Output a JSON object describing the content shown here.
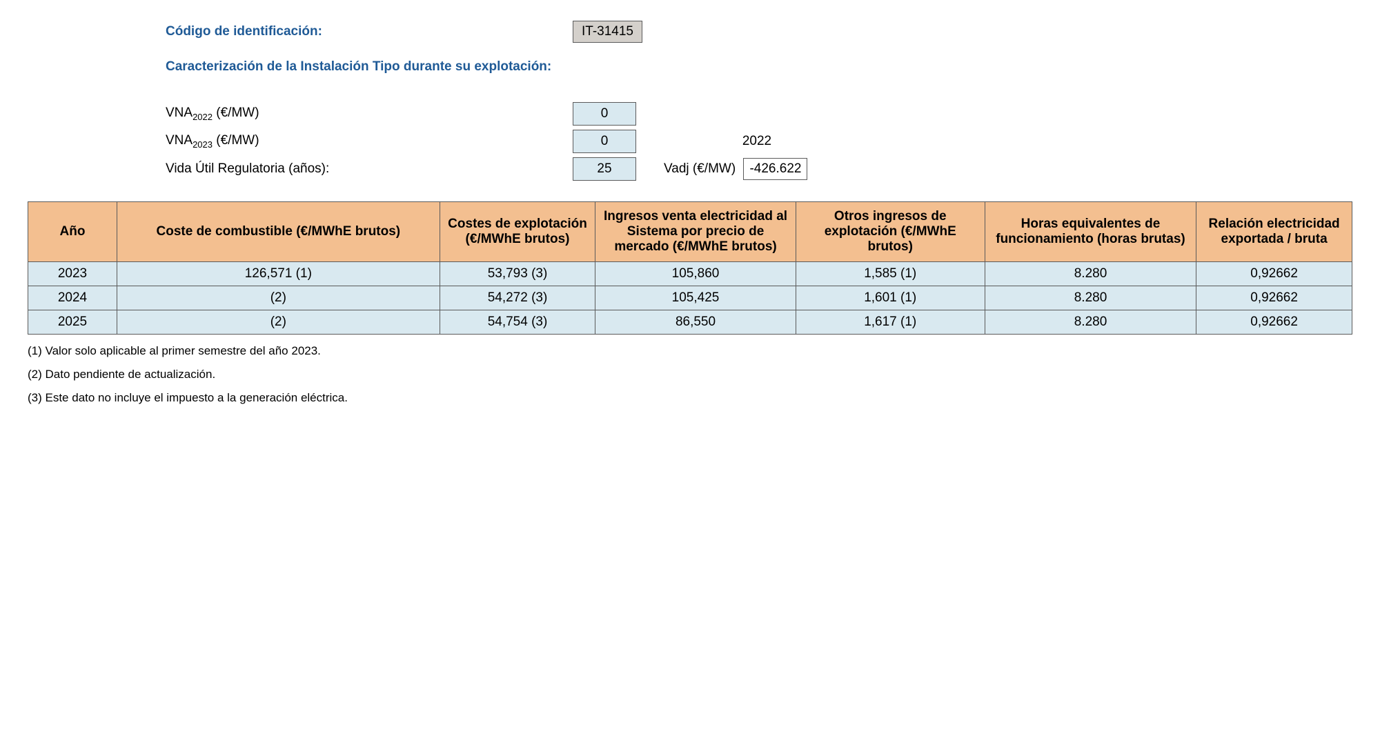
{
  "header": {
    "code_label": "Código de identificación:",
    "code_value": "IT-31415",
    "section_title": "Caracterización de la Instalación Tipo durante su explotación:"
  },
  "params": {
    "vna2022_label": "VNA",
    "vna2022_sub": "2022",
    "vna2022_unit": " (€/MW)",
    "vna2022_value": "0",
    "vna2023_label": "VNA",
    "vna2023_sub": "2023",
    "vna2023_unit": " (€/MW)",
    "vna2023_value": "0",
    "year_side": "2022",
    "life_label": "Vida Útil Regulatoria (años):",
    "life_value": "25",
    "vadj_label": "Vadj (€/MW)",
    "vadj_value": "-426.622"
  },
  "table": {
    "headers": {
      "year": "Año",
      "fuel": "Coste de combustible (€/MWhE brutos)",
      "exploit": "Costes de explotación (€/MWhE brutos)",
      "income": "Ingresos venta electricidad al Sistema por precio de mercado (€/MWhE brutos)",
      "other": "Otros ingresos de explotación (€/MWhE brutos)",
      "hours": "Horas equivalentes de funcionamiento (horas brutas)",
      "ratio": "Relación electricidad exportada / bruta"
    },
    "rows": [
      {
        "year": "2023",
        "fuel": "126,571 (1)",
        "exploit": "53,793 (3)",
        "income": "105,860",
        "other": "1,585 (1)",
        "hours": "8.280",
        "ratio": "0,92662"
      },
      {
        "year": "2024",
        "fuel": "(2)",
        "exploit": "54,272 (3)",
        "income": "105,425",
        "other": "1,601 (1)",
        "hours": "8.280",
        "ratio": "0,92662"
      },
      {
        "year": "2025",
        "fuel": "(2)",
        "exploit": "54,754 (3)",
        "income": "86,550",
        "other": "1,617 (1)",
        "hours": "8.280",
        "ratio": "0,92662"
      }
    ]
  },
  "footnotes": {
    "note1": "(1) Valor solo aplicable al primer semestre del año 2023.",
    "note2": "(2) Dato pendiente de actualización.",
    "note3": "(3) Este dato no incluye el impuesto a la generación eléctrica."
  },
  "styling": {
    "header_color": "#1f5a96",
    "code_box_bg": "#d4d0cb",
    "param_box_bg": "#d9e9f0",
    "table_header_bg": "#f3bf90",
    "table_cell_bg": "#d9e9f0",
    "border_color": "#5a5a5a",
    "body_font_size": 19,
    "footnote_font_size": 17
  }
}
